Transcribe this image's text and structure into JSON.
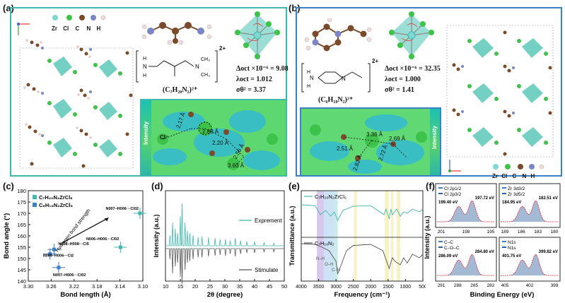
{
  "panels": {
    "a": {
      "letter": "(a)",
      "legend": [
        "Zr",
        "Cl",
        "C",
        "N",
        "H"
      ],
      "formula": "(C₇H₂₀N₂)²⁺",
      "charge": "2+",
      "delta": "Δoct ×10⁻⁶ = 9.08",
      "lambda": "λoct = 1.012",
      "sigma": "σθ² = 3.37",
      "intensity_label": "Intensity",
      "cl_label": "Cl⁻",
      "distances": [
        "2.17 Å",
        "2.88 Å",
        "2.20 Å",
        "2.56 Å",
        "3.63 Å"
      ]
    },
    "b": {
      "letter": "(b)",
      "legend": [
        "Zr",
        "Cl",
        "C",
        "N",
        "H"
      ],
      "formula": "(C₆H₁₈N₂)²⁺",
      "charge": "2+",
      "delta": "Δoct ×10⁻⁶ = 32.35",
      "lambda": "λoct = 1.000",
      "sigma": "σθ² = 1.41",
      "intensity_label": "Intensity",
      "distances": [
        "3.36 Å",
        "2.51 Å",
        "2.69 Å",
        "2.72 Å",
        "2.82 Å"
      ]
    },
    "c": {
      "letter": "(c)"
    },
    "d": {
      "letter": "(d)"
    },
    "e": {
      "letter": "(e)"
    },
    "f": {
      "letter": "(f)"
    }
  },
  "chart_data": [
    {
      "panel": "c",
      "type": "scatter",
      "xlabel": "Bond length (Å)",
      "ylabel": "Bond angle (°)",
      "xlim": [
        3.3,
        3.1
      ],
      "ylim": [
        140,
        180
      ],
      "xticks": [
        "3.30",
        "3.26",
        "3.22",
        "3.18",
        "3.14",
        "3.10"
      ],
      "yticks": [
        "140",
        "145",
        "150",
        "155",
        "160",
        "165",
        "170",
        "175",
        "180"
      ],
      "series": [
        {
          "name": "C₇H₂₀N₂ZrCl₆",
          "points": [
            {
              "x": 3.105,
              "y": 170,
              "label": "N007–H006···Cl02"
            },
            {
              "x": 3.139,
              "y": 155,
              "label": "N006–H006···Cl02"
            }
          ]
        },
        {
          "name": "C₆H₁₈N₂ZrCl₆",
          "points": [
            {
              "x": 3.255,
              "y": 154,
              "label": "N008–H008···Cl5"
            },
            {
              "x": 3.262,
              "y": 152,
              "label": "N009–H006···Cl2"
            },
            {
              "x": 3.247,
              "y": 146,
              "label": "N007–H006···Cl02"
            }
          ]
        }
      ],
      "annotation": "Hydrogen bond strength"
    },
    {
      "panel": "d",
      "type": "line",
      "xlabel": "2θ (degree)",
      "ylabel": "Intensity (a.u.)",
      "xlim": [
        10,
        50
      ],
      "xticks": [
        "10",
        "15",
        "20",
        "25",
        "30",
        "35",
        "40",
        "45",
        "50"
      ],
      "series": [
        {
          "name": "Exprement",
          "color": "#3fb8ae",
          "peaks": [
            [
              11.5,
              0.25
            ],
            [
              12.4,
              0.55
            ],
            [
              13.3,
              0.4
            ],
            [
              14.1,
              0.3
            ],
            [
              15.0,
              0.7
            ],
            [
              15.6,
              1.0
            ],
            [
              16.6,
              0.55
            ],
            [
              17.4,
              0.35
            ],
            [
              18.2,
              0.3
            ],
            [
              19.3,
              0.25
            ],
            [
              21.0,
              0.2
            ],
            [
              22.3,
              0.22
            ],
            [
              24.5,
              0.2
            ],
            [
              26.7,
              0.18
            ],
            [
              28.4,
              0.15
            ],
            [
              30.2,
              0.15
            ],
            [
              31.8,
              0.12
            ],
            [
              33.5,
              0.18
            ],
            [
              35.3,
              0.12
            ],
            [
              37.4,
              0.1
            ],
            [
              40.0,
              0.1
            ],
            [
              43.2,
              0.08
            ],
            [
              46.5,
              0.07
            ]
          ]
        },
        {
          "name": "Stimulate",
          "color": "#555555",
          "peaks": [
            [
              11.5,
              0.3
            ],
            [
              12.4,
              0.7
            ],
            [
              13.3,
              0.5
            ],
            [
              14.1,
              0.4
            ],
            [
              15.0,
              0.8
            ],
            [
              15.6,
              1.0
            ],
            [
              16.6,
              0.6
            ],
            [
              17.4,
              0.4
            ],
            [
              18.2,
              0.35
            ],
            [
              19.3,
              0.3
            ],
            [
              21.0,
              0.25
            ],
            [
              22.3,
              0.25
            ],
            [
              24.5,
              0.22
            ],
            [
              26.7,
              0.2
            ],
            [
              28.4,
              0.18
            ],
            [
              30.2,
              0.2
            ],
            [
              31.8,
              0.15
            ],
            [
              33.5,
              0.22
            ],
            [
              35.3,
              0.15
            ],
            [
              37.4,
              0.12
            ],
            [
              40.0,
              0.12
            ],
            [
              43.2,
              0.1
            ],
            [
              46.5,
              0.1
            ]
          ]
        }
      ]
    },
    {
      "panel": "e",
      "type": "line",
      "xlabel": "Frequency (cm⁻¹)",
      "ylabel": "Transmittance (a.u.)",
      "xlim": [
        4000,
        500
      ],
      "xticks": [
        "4000",
        "3500",
        "3000",
        "2500",
        "2000",
        "1500",
        "1000",
        "500"
      ],
      "bands": [
        {
          "from": 3550,
          "to": 3350,
          "color": "#c9b6e8",
          "label": "N–H"
        },
        {
          "from": 3350,
          "to": 3050,
          "color": "#bcd9f2",
          "label": "O–H"
        },
        {
          "from": 3050,
          "to": 2950,
          "color": "#b6e6e2",
          "label": "C–H"
        },
        {
          "from": 2480,
          "to": 2400,
          "color": "#f4ecb0",
          "label": ""
        },
        {
          "from": 1600,
          "to": 1480,
          "color": "#f4ecb0",
          "label": ""
        },
        {
          "from": 1420,
          "to": 1350,
          "color": "#f4ecb0",
          "label": ""
        },
        {
          "from": 1250,
          "to": 1150,
          "color": "#f4ecb0",
          "label": ""
        }
      ],
      "series": [
        {
          "name": "C₇H₂₀N₂ZrCl₆",
          "color": "#3fb8ae"
        },
        {
          "name": "C₇H₁₈N₂",
          "color": "#555555"
        }
      ]
    },
    {
      "panel": "f",
      "type": "line",
      "ylabel": "Intensity (a.u.)",
      "xlabel": "Binding Energy (eV)",
      "subplots": [
        {
          "name": "Cl",
          "legend": [
            "Cl 2p1/2",
            "Cl 2p3/2"
          ],
          "peaks": [
            "199.40 eV",
            "197.72 eV"
          ],
          "xticks": [
            "201",
            "198",
            "195"
          ]
        },
        {
          "name": "Zr",
          "legend": [
            "Zr 3d3/2",
            "Zr 3d5/2"
          ],
          "peaks": [
            "184.95 eV",
            "182.51 eV"
          ],
          "xticks": [
            "189",
            "186",
            "183",
            "180"
          ]
        },
        {
          "name": "C",
          "legend": [
            "C–C",
            "C–O–C"
          ],
          "peaks": [
            "286.09 eV",
            "284.80 eV"
          ],
          "xticks": [
            "291",
            "288",
            "285",
            "282"
          ]
        },
        {
          "name": "N",
          "legend": [
            "N1s",
            "N1s"
          ],
          "peaks": [
            "401.75 eV",
            "399.82 eV"
          ],
          "xticks": [
            "405",
            "402",
            "399"
          ]
        }
      ]
    }
  ]
}
